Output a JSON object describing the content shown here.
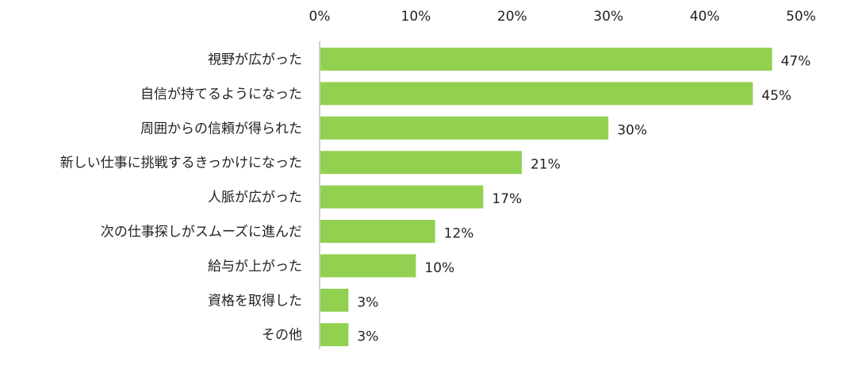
{
  "chart_data": {
    "type": "bar",
    "orientation": "horizontal",
    "title": "",
    "xlabel": "",
    "ylabel": "",
    "xlim": [
      0,
      50
    ],
    "x_tick_values": [
      0,
      10,
      20,
      30,
      40,
      50
    ],
    "x_tick_labels": [
      "0%",
      "10%",
      "20%",
      "30%",
      "40%",
      "50%"
    ],
    "x_axis_position": "top",
    "grid": false,
    "legend": "none",
    "bar_color": "#92d050",
    "categories": [
      "視野が広がった",
      "自信が持てるようになった",
      "周囲からの信頼が得られた",
      "新しい仕事に挑戦するきっかけになった",
      "人脈が広がった",
      "次の仕事探しがスムーズに進んだ",
      "給与が上がった",
      "資格を取得した",
      "その他"
    ],
    "values": [
      47,
      45,
      30,
      21,
      17,
      12,
      10,
      3,
      3
    ],
    "data_labels": [
      "47%",
      "45%",
      "30%",
      "21%",
      "17%",
      "12%",
      "10%",
      "3%",
      "3%"
    ]
  }
}
